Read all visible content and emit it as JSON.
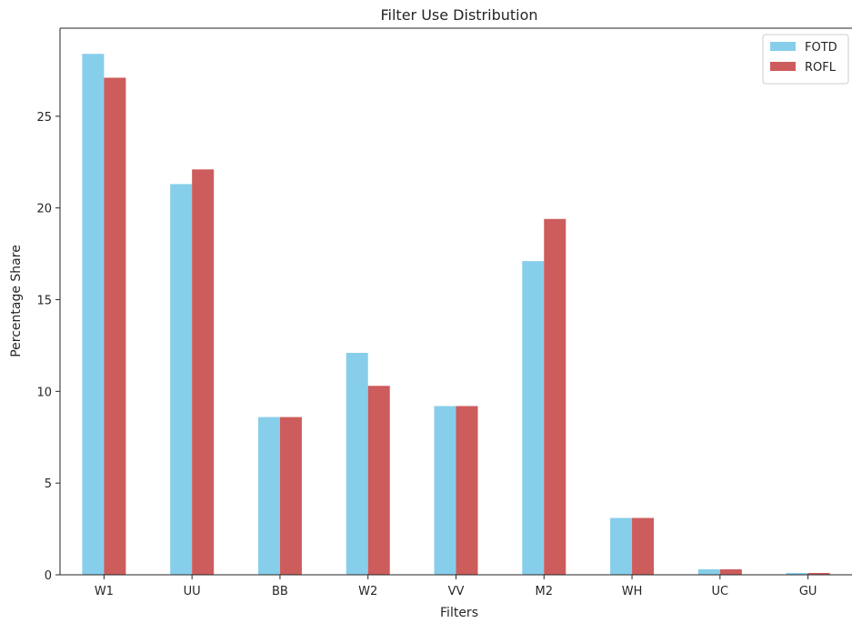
{
  "chart_data": {
    "type": "bar",
    "title": "Filter Use Distribution",
    "xlabel": "Filters",
    "ylabel": "Percentage Share",
    "categories": [
      "W1",
      "UU",
      "BB",
      "W2",
      "VV",
      "M2",
      "WH",
      "UC",
      "GU"
    ],
    "series": [
      {
        "name": "FOTD",
        "color": "#87ceeb",
        "values": [
          28.4,
          21.3,
          8.6,
          12.1,
          9.2,
          17.1,
          3.1,
          0.3,
          0.1
        ]
      },
      {
        "name": "ROFL",
        "color": "#cd5c5c",
        "values": [
          27.1,
          22.1,
          8.6,
          10.3,
          9.2,
          19.4,
          3.1,
          0.3,
          0.1
        ]
      }
    ],
    "ylim": [
      0,
      29.8
    ],
    "yticks": [
      0,
      5,
      10,
      15,
      20,
      25
    ],
    "grid": false,
    "legend_position": "top-right"
  }
}
